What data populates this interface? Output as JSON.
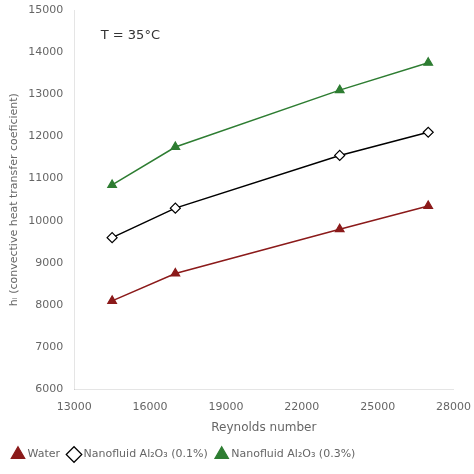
{
  "chart_data": {
    "type": "line",
    "x": [
      14500,
      17000,
      23500,
      27000
    ],
    "series": [
      {
        "name": "Water",
        "color": "#8B1A1A",
        "marker": "triangle",
        "values": [
          8100,
          8750,
          9800,
          10350
        ]
      },
      {
        "name": "Nanofluid Al₂O₃ (0.1%)",
        "color": "#000000",
        "marker": "open_diamond",
        "values": [
          9600,
          10300,
          11550,
          12100
        ]
      },
      {
        "name": "Nanofluid Al₂O₃ (0.3%)",
        "color": "#2E7D32",
        "marker": "triangle",
        "values": [
          10850,
          11750,
          13100,
          13750
        ]
      }
    ],
    "xlabel": "Reynolds number",
    "ylabel": "hᵢ (convective heat transfer coeficient)",
    "annotation": "T = 35°C",
    "xlim": [
      13000,
      28000
    ],
    "ylim": [
      6000,
      15000
    ],
    "xticks": [
      13000,
      16000,
      19000,
      22000,
      25000,
      28000
    ],
    "yticks": [
      6000,
      7000,
      8000,
      9000,
      10000,
      11000,
      12000,
      13000,
      14000,
      15000
    ],
    "grid": false,
    "legend": "bottom"
  }
}
